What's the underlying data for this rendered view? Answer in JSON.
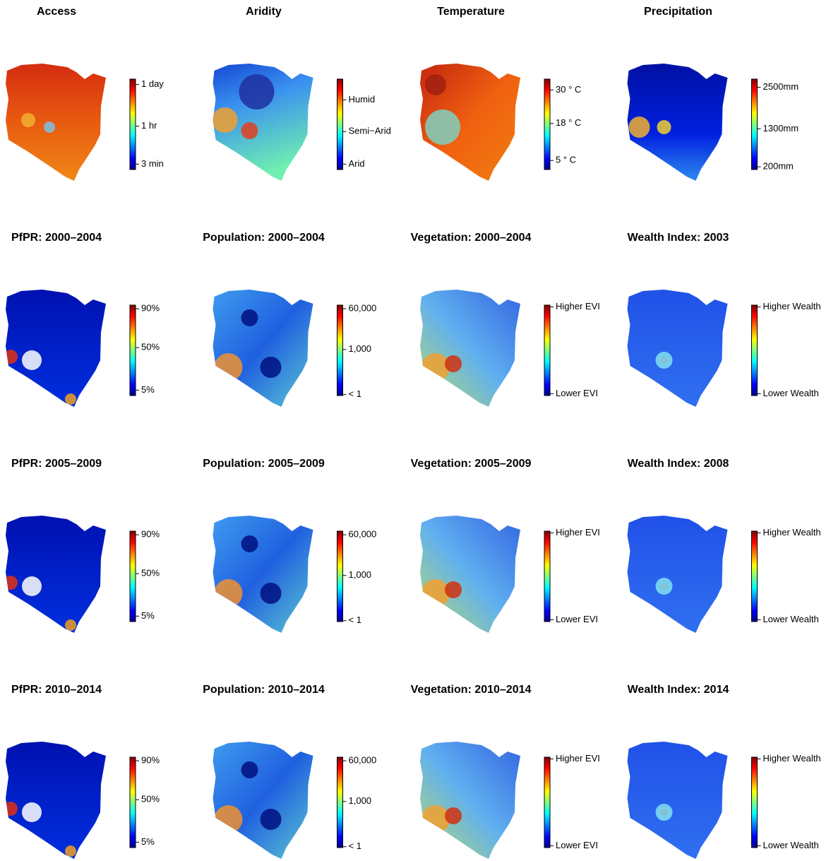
{
  "panels": [
    {
      "title": "Access",
      "legend": [
        "1 day",
        "1 hr",
        "3 min"
      ]
    },
    {
      "title": "Aridity",
      "legend": [
        "Humid",
        "Semi−Arid",
        "Arid"
      ]
    },
    {
      "title": "Temperature",
      "legend": [
        "30 ° C",
        "18 ° C",
        "5 ° C"
      ]
    },
    {
      "title": "Precipitation",
      "legend": [
        "2500mm",
        "1300mm",
        "200mm"
      ]
    },
    {
      "title": "PfPR: 2000–2004",
      "legend": [
        "90%",
        "50%",
        "5%"
      ]
    },
    {
      "title": "Population: 2000–2004",
      "legend": [
        "60,000",
        "1,000",
        "< 1"
      ]
    },
    {
      "title": "Vegetation: 2000–2004",
      "legend": [
        "Higher EVI",
        "Lower EVI"
      ]
    },
    {
      "title": "Wealth Index: 2003",
      "legend": [
        "Higher Wealth",
        "Lower Wealth"
      ]
    },
    {
      "title": "PfPR: 2005–2009",
      "legend": [
        "90%",
        "50%",
        "5%"
      ]
    },
    {
      "title": "Population: 2005–2009",
      "legend": [
        "60,000",
        "1,000",
        "< 1"
      ]
    },
    {
      "title": "Vegetation: 2005–2009",
      "legend": [
        "Higher EVI",
        "Lower EVI"
      ]
    },
    {
      "title": "Wealth Index: 2008",
      "legend": [
        "Higher Wealth",
        "Lower Wealth"
      ]
    },
    {
      "title": "PfPR: 2010–2014",
      "legend": [
        "90%",
        "50%",
        "5%"
      ]
    },
    {
      "title": "Population: 2010–2014",
      "legend": [
        "60,000",
        "1,000",
        "< 1"
      ]
    },
    {
      "title": "Vegetation: 2010–2014",
      "legend": [
        "Higher EVI",
        "Lower EVI"
      ]
    },
    {
      "title": "Wealth Index: 2014",
      "legend": [
        "Higher Wealth",
        "Lower Wealth"
      ]
    }
  ]
}
